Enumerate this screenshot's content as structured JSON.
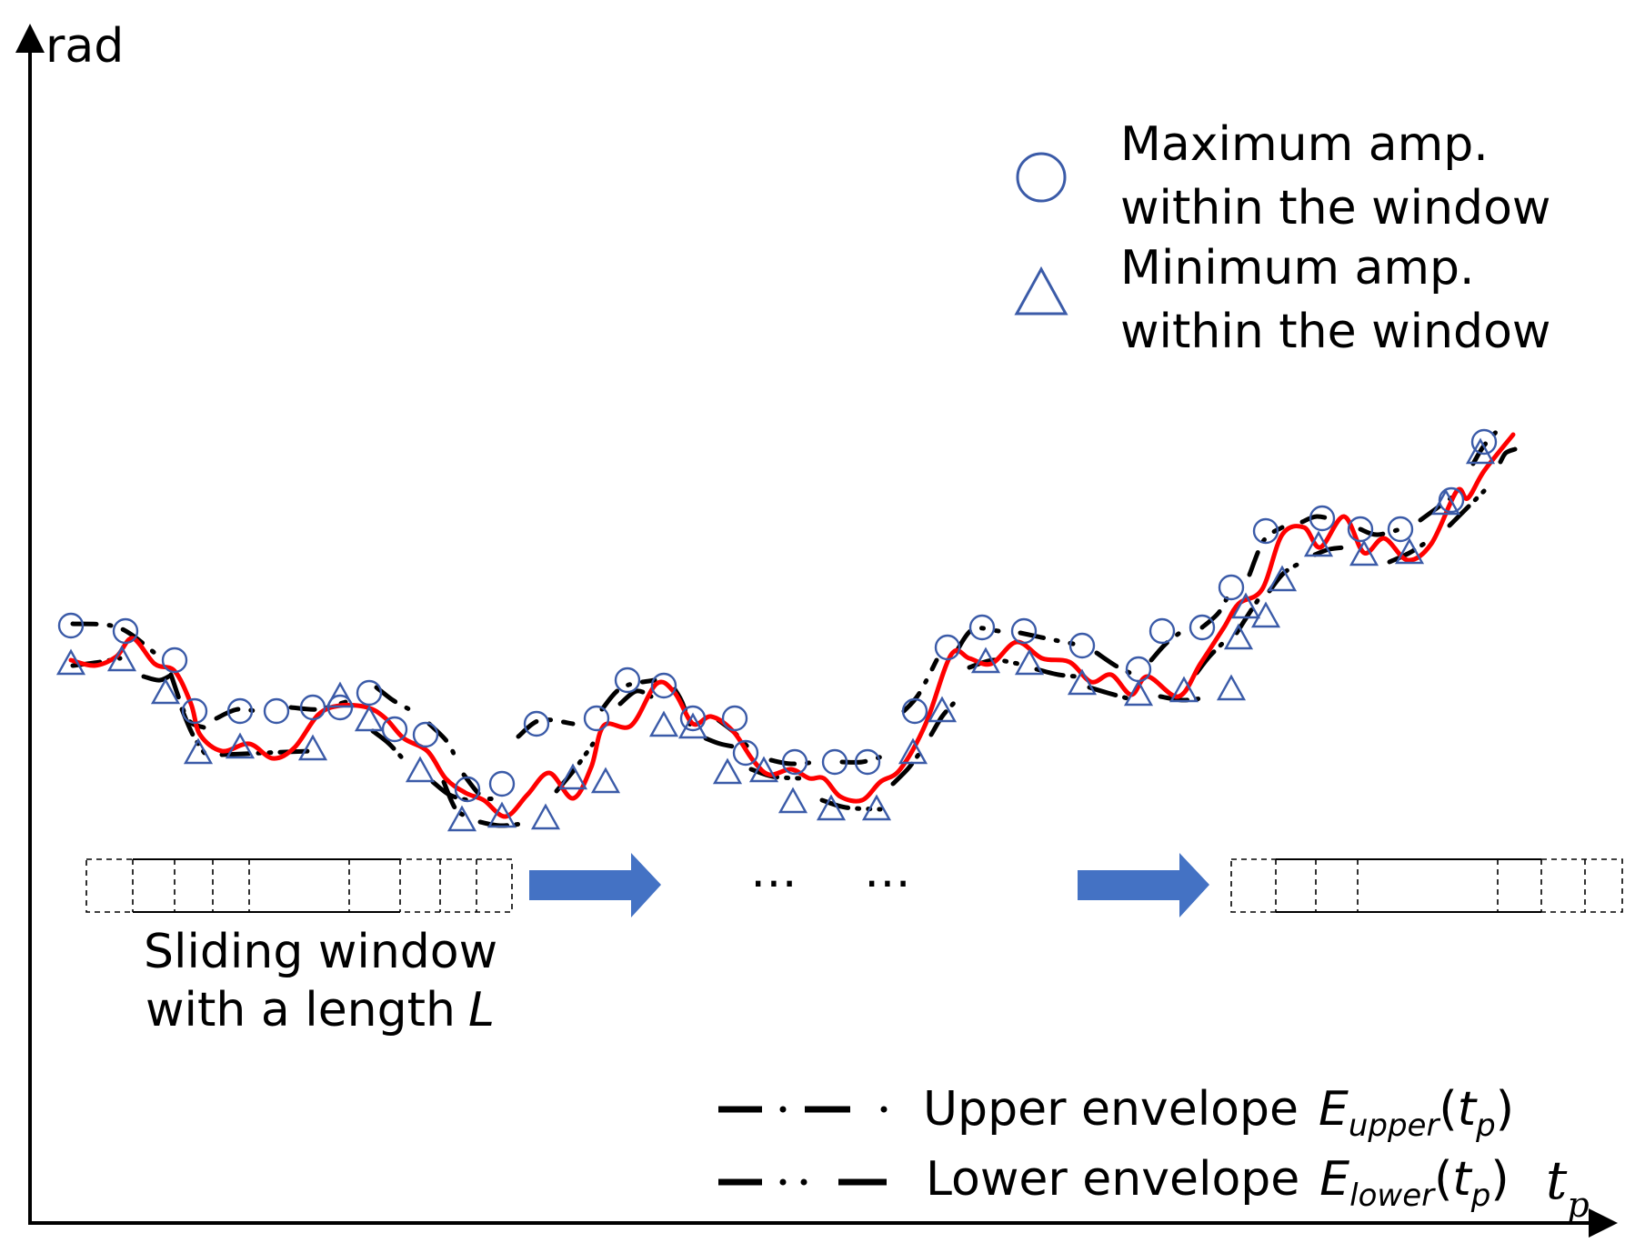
{
  "axes": {
    "y_label": "rad",
    "x_label": {
      "main": "t",
      "sub": "p"
    }
  },
  "legend_markers": {
    "maximum": {
      "line1": "Maximum amp.",
      "line2": "within the window",
      "icon": "circle-icon"
    },
    "minimum": {
      "line1": "Minimum amp.",
      "line2": "within the window",
      "icon": "triangle-icon"
    }
  },
  "legend_envelopes": {
    "upper": {
      "label": "Upper envelope",
      "sym": "E",
      "sub": "upper",
      "arg_open": "(",
      "arg": "t",
      "arg_sub": "p",
      "arg_close": ")"
    },
    "lower": {
      "label": "Lower envelope",
      "sym": "E",
      "sub": "lower",
      "arg_open": "(",
      "arg": "t",
      "arg_sub": "p",
      "arg_close": ")"
    }
  },
  "window": {
    "caption_line1": "Sliding window",
    "caption_line2_prefix": "with a length",
    "caption_line2_var": "L"
  },
  "ellipsis": [
    "⋯",
    "⋯"
  ],
  "colors": {
    "signal": "#ff0000",
    "envelope": "#000000",
    "marker": "#3b5ba8",
    "arrow": "#4472c4",
    "axis": "#000000"
  }
}
